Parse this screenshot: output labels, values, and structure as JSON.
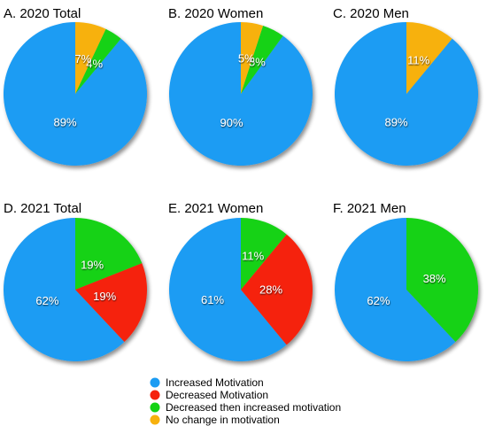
{
  "legend": {
    "items": [
      {
        "label": "Increased Motivation",
        "color": "#1b9cf3"
      },
      {
        "label": "Decreased Motivation",
        "color": "#f5220c"
      },
      {
        "label": "Decreased then increased motivation",
        "color": "#14d214"
      },
      {
        "label": "No change in motivation",
        "color": "#f7b10d"
      }
    ]
  },
  "chart_data": [
    {
      "type": "pie",
      "title": "A. 2020 Total",
      "slices": [
        {
          "category": "Increased Motivation",
          "value": 89,
          "label": "89%"
        },
        {
          "category": "Decreased then increased motivation",
          "value": 4,
          "label": "4%"
        },
        {
          "category": "No change in motivation",
          "value": 7,
          "label": "7%"
        }
      ]
    },
    {
      "type": "pie",
      "title": "B. 2020 Women",
      "slices": [
        {
          "category": "Increased Motivation",
          "value": 90,
          "label": "90%"
        },
        {
          "category": "Decreased then increased motivation",
          "value": 5,
          "label": "5%"
        },
        {
          "category": "No change in motivation",
          "value": 5,
          "label": "5%"
        }
      ]
    },
    {
      "type": "pie",
      "title": "C. 2020 Men",
      "slices": [
        {
          "category": "Increased Motivation",
          "value": 89,
          "label": "89%"
        },
        {
          "category": "No change in motivation",
          "value": 11,
          "label": "11%"
        }
      ]
    },
    {
      "type": "pie",
      "title": "D. 2021 Total",
      "slices": [
        {
          "category": "Increased Motivation",
          "value": 62,
          "label": "62%"
        },
        {
          "category": "Decreased Motivation",
          "value": 19,
          "label": "19%"
        },
        {
          "category": "Decreased then increased motivation",
          "value": 19,
          "label": "19%"
        }
      ]
    },
    {
      "type": "pie",
      "title": "E. 2021 Women",
      "slices": [
        {
          "category": "Increased Motivation",
          "value": 61,
          "label": "61%"
        },
        {
          "category": "Decreased Motivation",
          "value": 28,
          "label": "28%"
        },
        {
          "category": "Decreased then increased motivation",
          "value": 11,
          "label": "11%"
        }
      ]
    },
    {
      "type": "pie",
      "title": "F. 2021 Men",
      "slices": [
        {
          "category": "Increased Motivation",
          "value": 62,
          "label": "62%"
        },
        {
          "category": "Decreased then increased motivation",
          "value": 38,
          "label": "38%"
        }
      ]
    }
  ]
}
